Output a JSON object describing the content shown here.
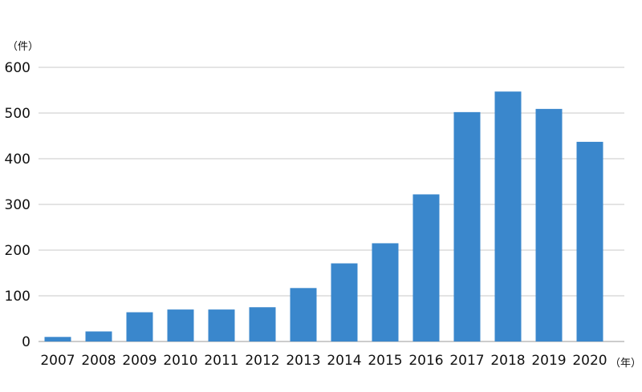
{
  "chart_data": {
    "type": "bar",
    "y_unit": "（件）",
    "x_unit": "（年）",
    "categories": [
      "2007",
      "2008",
      "2009",
      "2010",
      "2011",
      "2012",
      "2013",
      "2014",
      "2015",
      "2016",
      "2017",
      "2018",
      "2019",
      "2020"
    ],
    "values": [
      10,
      22,
      64,
      70,
      70,
      75,
      117,
      171,
      215,
      322,
      502,
      547,
      509,
      437
    ],
    "ylim": [
      0,
      600
    ],
    "yticks": [
      0,
      100,
      200,
      300,
      400,
      500,
      600
    ],
    "grid": true,
    "bar_color": "#3a87cc",
    "grid_color": "#c8c8c8",
    "axis_color": "#9a9a9a"
  }
}
